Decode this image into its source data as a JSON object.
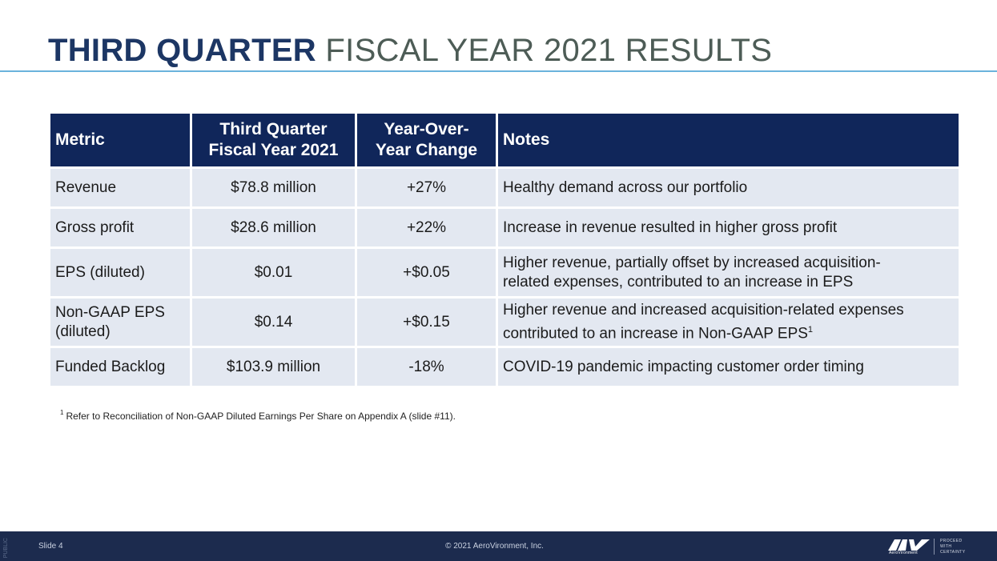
{
  "title": {
    "bold": "THIRD QUARTER",
    "light": "FISCAL YEAR 2021 RESULTS"
  },
  "table": {
    "headers": {
      "metric": "Metric",
      "quarter_line1": "Third Quarter",
      "quarter_line2": "Fiscal Year 2021",
      "change_line1": "Year-Over-",
      "change_line2": "Year Change",
      "notes": "Notes"
    },
    "rows": [
      {
        "metric": "Revenue",
        "value": "$78.8 million",
        "change": "+27%",
        "note": "Healthy demand across our portfolio"
      },
      {
        "metric": "Gross profit",
        "value": "$28.6 million",
        "change": "+22%",
        "note": "Increase in revenue resulted in higher gross profit"
      },
      {
        "metric": "EPS (diluted)",
        "value": "$0.01",
        "change": "+$0.05",
        "note_line1": "Higher revenue, partially offset by increased acquisition-",
        "note_line2": "related expenses, contributed to an increase in EPS"
      },
      {
        "metric_line1": "Non-GAAP EPS",
        "metric_line2": "(diluted)",
        "value": "$0.14",
        "change": "+$0.15",
        "note_line1": "Higher revenue and increased acquisition-related expenses",
        "note_line2": "contributed to an increase in Non-GAAP EPS",
        "note_sup": "1"
      },
      {
        "metric": "Funded Backlog",
        "value": "$103.9 million",
        "change": "-18%",
        "note": "COVID-19 pandemic impacting customer order timing"
      }
    ]
  },
  "footnote": {
    "marker": "1",
    "text": "Refer to Reconciliation of Non-GAAP Diluted Earnings Per Share on Appendix A (slide #11)."
  },
  "footer": {
    "slide": "Slide 4",
    "copyright": "© 2021 AeroVironment, Inc.",
    "side_tag": "PUBLIC",
    "logo_mark": "AV",
    "logo_sub": "AeroVironment",
    "tagline_lines": [
      "PROCEED",
      "WITH",
      "CERTAINTY"
    ]
  },
  "colors": {
    "title_bold": "#1c3664",
    "title_light": "#4d5c56",
    "rule": "#6ab3dc",
    "header_bg": "#10265a",
    "row_bg": "#e3e8f1",
    "footer_bg": "#1c2b4e"
  }
}
